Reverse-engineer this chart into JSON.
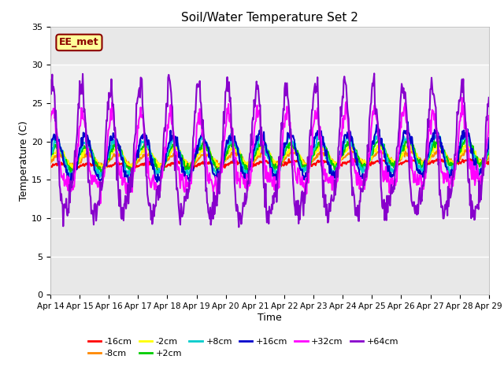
{
  "title": "Soil/Water Temperature Set 2",
  "xlabel": "Time",
  "ylabel": "Temperature (C)",
  "ylim": [
    0,
    35
  ],
  "yticks": [
    0,
    5,
    10,
    15,
    20,
    25,
    30,
    35
  ],
  "x_labels": [
    "Apr 14",
    "Apr 15",
    "Apr 16",
    "Apr 17",
    "Apr 18",
    "Apr 19",
    "Apr 20",
    "Apr 21",
    "Apr 22",
    "Apr 23",
    "Apr 24",
    "Apr 25",
    "Apr 26",
    "Apr 27",
    "Apr 28",
    "Apr 29"
  ],
  "annotation_text": "EE_met",
  "annotation_bg": "#ffff99",
  "annotation_border": "#8B0000",
  "bg_color": "#ffffff",
  "plot_bg_outer": "#d8d8d8",
  "plot_bg_inner": "#e8e8e8",
  "series": {
    "-16cm": {
      "color": "#ff0000",
      "lw": 1.5
    },
    "-8cm": {
      "color": "#ff8800",
      "lw": 1.5
    },
    "-2cm": {
      "color": "#ffff00",
      "lw": 1.5
    },
    "+2cm": {
      "color": "#00cc00",
      "lw": 1.5
    },
    "+8cm": {
      "color": "#00cccc",
      "lw": 1.5
    },
    "+16cm": {
      "color": "#0000cc",
      "lw": 1.5
    },
    "+32cm": {
      "color": "#ff00ff",
      "lw": 1.5
    },
    "+64cm": {
      "color": "#8800cc",
      "lw": 1.5
    }
  },
  "legend_order": [
    "-16cm",
    "-8cm",
    "-2cm",
    "+2cm",
    "+8cm",
    "+16cm",
    "+32cm",
    "+64cm"
  ]
}
